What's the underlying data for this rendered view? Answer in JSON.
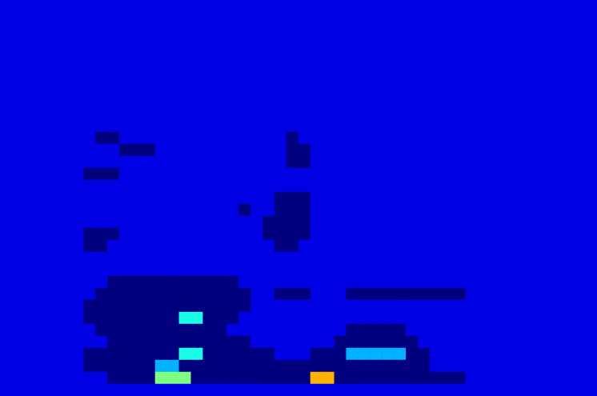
{
  "chart_data": {
    "type": "heatmap",
    "tick_labels": false,
    "color_range": [
      0,
      10
    ],
    "cells": [
      [
        1,
        1,
        1,
        1,
        1,
        1,
        1,
        1,
        1,
        1,
        1,
        1,
        1,
        1,
        1,
        1,
        1,
        1,
        1,
        1,
        1,
        1,
        1,
        1,
        1,
        1,
        1,
        1,
        1,
        1,
        1,
        1,
        1,
        1,
        1,
        1,
        1,
        1,
        1,
        1,
        1,
        1,
        1,
        1,
        1,
        1,
        1,
        1,
        1,
        1
      ],
      [
        1,
        1,
        1,
        1,
        1,
        1,
        1,
        1,
        1,
        1,
        1,
        1,
        1,
        1,
        1,
        1,
        1,
        1,
        1,
        1,
        1,
        1,
        1,
        1,
        1,
        1,
        1,
        1,
        1,
        1,
        1,
        1,
        1,
        1,
        1,
        1,
        1,
        1,
        1,
        1,
        1,
        1,
        1,
        1,
        1,
        1,
        1,
        1,
        1,
        1
      ],
      [
        1,
        1,
        1,
        1,
        1,
        1,
        1,
        1,
        1,
        1,
        1,
        1,
        1,
        1,
        1,
        1,
        1,
        1,
        1,
        1,
        1,
        1,
        1,
        1,
        1,
        1,
        1,
        1,
        1,
        1,
        1,
        1,
        1,
        1,
        1,
        1,
        1,
        1,
        1,
        1,
        1,
        1,
        1,
        1,
        1,
        1,
        1,
        1,
        1,
        1
      ],
      [
        1,
        1,
        1,
        1,
        1,
        1,
        1,
        1,
        1,
        1,
        1,
        1,
        1,
        1,
        1,
        1,
        1,
        1,
        1,
        1,
        1,
        1,
        1,
        1,
        1,
        1,
        1,
        1,
        1,
        1,
        1,
        1,
        1,
        1,
        1,
        1,
        1,
        1,
        1,
        1,
        1,
        1,
        1,
        1,
        1,
        1,
        1,
        1,
        1,
        1
      ],
      [
        1,
        1,
        1,
        1,
        1,
        1,
        1,
        1,
        1,
        1,
        1,
        1,
        1,
        1,
        1,
        1,
        1,
        1,
        1,
        1,
        1,
        1,
        1,
        1,
        1,
        1,
        1,
        1,
        1,
        1,
        1,
        1,
        1,
        1,
        1,
        1,
        1,
        1,
        1,
        1,
        1,
        1,
        1,
        1,
        1,
        1,
        1,
        1,
        1,
        1
      ],
      [
        1,
        1,
        1,
        1,
        1,
        1,
        1,
        1,
        1,
        1,
        1,
        1,
        1,
        1,
        1,
        1,
        1,
        1,
        1,
        1,
        1,
        1,
        1,
        1,
        1,
        1,
        1,
        1,
        1,
        1,
        1,
        1,
        1,
        1,
        1,
        1,
        1,
        1,
        1,
        1,
        1,
        1,
        1,
        1,
        1,
        1,
        1,
        1,
        1,
        1
      ],
      [
        1,
        1,
        1,
        1,
        1,
        1,
        1,
        1,
        1,
        1,
        1,
        1,
        1,
        1,
        1,
        1,
        1,
        1,
        1,
        1,
        1,
        1,
        1,
        1,
        1,
        1,
        1,
        1,
        1,
        1,
        1,
        1,
        1,
        1,
        1,
        1,
        1,
        1,
        1,
        1,
        1,
        1,
        1,
        1,
        1,
        1,
        1,
        1,
        1,
        1
      ],
      [
        1,
        1,
        1,
        1,
        1,
        1,
        1,
        1,
        1,
        1,
        1,
        1,
        1,
        1,
        1,
        1,
        1,
        1,
        1,
        1,
        1,
        1,
        1,
        1,
        1,
        1,
        1,
        1,
        1,
        1,
        1,
        1,
        1,
        1,
        1,
        1,
        1,
        1,
        1,
        1,
        1,
        1,
        1,
        1,
        1,
        1,
        1,
        1,
        1,
        1
      ],
      [
        1,
        1,
        1,
        1,
        1,
        1,
        1,
        1,
        1,
        1,
        1,
        1,
        1,
        1,
        1,
        1,
        1,
        1,
        1,
        1,
        1,
        1,
        1,
        1,
        1,
        1,
        1,
        1,
        1,
        1,
        1,
        1,
        1,
        1,
        1,
        1,
        1,
        1,
        1,
        1,
        1,
        1,
        1,
        1,
        1,
        1,
        1,
        1,
        1,
        1
      ],
      [
        1,
        1,
        1,
        1,
        1,
        1,
        1,
        1,
        1,
        1,
        1,
        1,
        1,
        1,
        1,
        1,
        1,
        1,
        1,
        1,
        1,
        1,
        1,
        1,
        1,
        1,
        1,
        1,
        1,
        1,
        1,
        1,
        1,
        1,
        1,
        1,
        1,
        1,
        1,
        1,
        1,
        1,
        1,
        1,
        1,
        1,
        1,
        1,
        1,
        1
      ],
      [
        1,
        1,
        1,
        1,
        1,
        1,
        1,
        1,
        1,
        1,
        1,
        1,
        1,
        1,
        1,
        1,
        1,
        1,
        1,
        1,
        1,
        1,
        1,
        1,
        1,
        1,
        1,
        1,
        1,
        1,
        1,
        1,
        1,
        1,
        1,
        1,
        1,
        1,
        1,
        1,
        1,
        1,
        1,
        1,
        1,
        1,
        1,
        1,
        1,
        1
      ],
      [
        1,
        1,
        1,
        1,
        1,
        1,
        1,
        1,
        0,
        0,
        1,
        1,
        1,
        1,
        1,
        1,
        1,
        1,
        1,
        1,
        1,
        1,
        1,
        1,
        0,
        1,
        1,
        1,
        1,
        1,
        1,
        1,
        1,
        1,
        1,
        1,
        1,
        1,
        1,
        1,
        1,
        1,
        1,
        1,
        1,
        1,
        1,
        1,
        1,
        1
      ],
      [
        1,
        1,
        1,
        1,
        1,
        1,
        1,
        1,
        1,
        1,
        0,
        0,
        0,
        1,
        1,
        1,
        1,
        1,
        1,
        1,
        1,
        1,
        1,
        1,
        0,
        0,
        1,
        1,
        1,
        1,
        1,
        1,
        1,
        1,
        1,
        1,
        1,
        1,
        1,
        1,
        1,
        1,
        1,
        1,
        1,
        1,
        1,
        1,
        1,
        1
      ],
      [
        1,
        1,
        1,
        1,
        1,
        1,
        1,
        1,
        1,
        1,
        1,
        1,
        1,
        1,
        1,
        1,
        1,
        1,
        1,
        1,
        1,
        1,
        1,
        1,
        0,
        0,
        1,
        1,
        1,
        1,
        1,
        1,
        1,
        1,
        1,
        1,
        1,
        1,
        1,
        1,
        1,
        1,
        1,
        1,
        1,
        1,
        1,
        1,
        1,
        1
      ],
      [
        1,
        1,
        1,
        1,
        1,
        1,
        1,
        0,
        0,
        0,
        1,
        1,
        1,
        1,
        1,
        1,
        1,
        1,
        1,
        1,
        1,
        1,
        1,
        1,
        1,
        1,
        1,
        1,
        1,
        1,
        1,
        1,
        1,
        1,
        1,
        1,
        1,
        1,
        1,
        1,
        1,
        1,
        1,
        1,
        1,
        1,
        1,
        1,
        1,
        1
      ],
      [
        1,
        1,
        1,
        1,
        1,
        1,
        1,
        1,
        1,
        1,
        1,
        1,
        1,
        1,
        1,
        1,
        1,
        1,
        1,
        1,
        1,
        1,
        1,
        1,
        1,
        1,
        1,
        1,
        1,
        1,
        1,
        1,
        1,
        1,
        1,
        1,
        1,
        1,
        1,
        1,
        1,
        1,
        1,
        1,
        1,
        1,
        1,
        1,
        1,
        1
      ],
      [
        1,
        1,
        1,
        1,
        1,
        1,
        1,
        1,
        1,
        1,
        1,
        1,
        1,
        1,
        1,
        1,
        1,
        1,
        1,
        1,
        1,
        1,
        1,
        0,
        0,
        0,
        1,
        1,
        1,
        1,
        1,
        1,
        1,
        1,
        1,
        1,
        1,
        1,
        1,
        1,
        1,
        1,
        1,
        1,
        1,
        1,
        1,
        1,
        1,
        1
      ],
      [
        1,
        1,
        1,
        1,
        1,
        1,
        1,
        1,
        1,
        1,
        1,
        1,
        1,
        1,
        1,
        1,
        1,
        1,
        1,
        1,
        0,
        1,
        1,
        0,
        0,
        0,
        1,
        1,
        1,
        1,
        1,
        1,
        1,
        1,
        1,
        1,
        1,
        1,
        1,
        1,
        1,
        1,
        1,
        1,
        1,
        1,
        1,
        1,
        1,
        1
      ],
      [
        1,
        1,
        1,
        1,
        1,
        1,
        1,
        1,
        1,
        1,
        1,
        1,
        1,
        1,
        1,
        1,
        1,
        1,
        1,
        1,
        1,
        1,
        0,
        0,
        0,
        0,
        1,
        1,
        1,
        1,
        1,
        1,
        1,
        1,
        1,
        1,
        1,
        1,
        1,
        1,
        1,
        1,
        1,
        1,
        1,
        1,
        1,
        1,
        1,
        1
      ],
      [
        1,
        1,
        1,
        1,
        1,
        1,
        1,
        0,
        0,
        0,
        1,
        1,
        1,
        1,
        1,
        1,
        1,
        1,
        1,
        1,
        1,
        1,
        0,
        0,
        0,
        0,
        1,
        1,
        1,
        1,
        1,
        1,
        1,
        1,
        1,
        1,
        1,
        1,
        1,
        1,
        1,
        1,
        1,
        1,
        1,
        1,
        1,
        1,
        1,
        1
      ],
      [
        1,
        1,
        1,
        1,
        1,
        1,
        1,
        0,
        0,
        1,
        1,
        1,
        1,
        1,
        1,
        1,
        1,
        1,
        1,
        1,
        1,
        1,
        1,
        0,
        0,
        1,
        1,
        1,
        1,
        1,
        1,
        1,
        1,
        1,
        1,
        1,
        1,
        1,
        1,
        1,
        1,
        1,
        1,
        1,
        1,
        1,
        1,
        1,
        1,
        1
      ],
      [
        1,
        1,
        1,
        1,
        1,
        1,
        1,
        1,
        1,
        1,
        1,
        1,
        1,
        1,
        1,
        1,
        1,
        1,
        1,
        1,
        1,
        1,
        1,
        1,
        1,
        1,
        1,
        1,
        1,
        1,
        1,
        1,
        1,
        1,
        1,
        1,
        1,
        1,
        1,
        1,
        1,
        1,
        1,
        1,
        1,
        1,
        1,
        1,
        1,
        1
      ],
      [
        1,
        1,
        1,
        1,
        1,
        1,
        1,
        1,
        1,
        1,
        1,
        1,
        1,
        1,
        1,
        1,
        1,
        1,
        1,
        1,
        1,
        1,
        1,
        1,
        1,
        1,
        1,
        1,
        1,
        1,
        1,
        1,
        1,
        1,
        1,
        1,
        1,
        1,
        1,
        1,
        1,
        1,
        1,
        1,
        1,
        1,
        1,
        1,
        1,
        1
      ],
      [
        1,
        1,
        1,
        1,
        1,
        1,
        1,
        1,
        1,
        0,
        0,
        0,
        0,
        0,
        0,
        0,
        0,
        0,
        0,
        0,
        1,
        1,
        1,
        1,
        1,
        1,
        1,
        1,
        1,
        1,
        1,
        1,
        1,
        1,
        1,
        1,
        1,
        1,
        1,
        1,
        1,
        1,
        1,
        1,
        1,
        1,
        1,
        1,
        1,
        1
      ],
      [
        1,
        1,
        1,
        1,
        1,
        1,
        1,
        1,
        0,
        0,
        0,
        0,
        0,
        0,
        0,
        0,
        0,
        0,
        0,
        0,
        0,
        1,
        1,
        0,
        0,
        0,
        1,
        1,
        1,
        0,
        0,
        0,
        0,
        0,
        0,
        0,
        0,
        0,
        0,
        1,
        1,
        1,
        1,
        1,
        1,
        1,
        1,
        1,
        1,
        1
      ],
      [
        1,
        1,
        1,
        1,
        1,
        1,
        1,
        0,
        0,
        0,
        0,
        0,
        0,
        0,
        0,
        0,
        0,
        0,
        0,
        0,
        0,
        1,
        1,
        1,
        1,
        1,
        1,
        1,
        1,
        1,
        1,
        1,
        1,
        1,
        1,
        1,
        1,
        1,
        1,
        1,
        1,
        1,
        1,
        1,
        1,
        1,
        1,
        1,
        1,
        1
      ],
      [
        1,
        1,
        1,
        1,
        1,
        1,
        1,
        0,
        0,
        0,
        0,
        0,
        0,
        0,
        0,
        4,
        4,
        0,
        0,
        0,
        1,
        1,
        1,
        1,
        1,
        1,
        1,
        1,
        1,
        1,
        1,
        1,
        1,
        1,
        1,
        1,
        1,
        1,
        1,
        1,
        1,
        1,
        1,
        1,
        1,
        1,
        1,
        1,
        1,
        1
      ],
      [
        1,
        1,
        1,
        1,
        1,
        1,
        1,
        1,
        0,
        0,
        0,
        0,
        0,
        0,
        0,
        0,
        0,
        0,
        0,
        1,
        1,
        1,
        1,
        1,
        1,
        1,
        1,
        1,
        1,
        0,
        0,
        0,
        0,
        0,
        1,
        1,
        1,
        1,
        1,
        1,
        1,
        1,
        1,
        1,
        1,
        1,
        1,
        1,
        1,
        1
      ],
      [
        1,
        1,
        1,
        1,
        1,
        1,
        1,
        1,
        1,
        0,
        0,
        0,
        0,
        0,
        0,
        0,
        0,
        0,
        0,
        0,
        0,
        1,
        1,
        1,
        1,
        1,
        1,
        1,
        0,
        0,
        0,
        0,
        0,
        0,
        0,
        1,
        1,
        1,
        1,
        1,
        1,
        1,
        1,
        1,
        1,
        1,
        1,
        1,
        1,
        1
      ],
      [
        1,
        1,
        1,
        1,
        1,
        1,
        1,
        0,
        0,
        0,
        0,
        0,
        0,
        0,
        0,
        4,
        4,
        0,
        0,
        0,
        0,
        0,
        0,
        1,
        1,
        1,
        0,
        0,
        0,
        3,
        3,
        3,
        3,
        3,
        0,
        0,
        1,
        1,
        1,
        1,
        1,
        1,
        1,
        1,
        1,
        1,
        1,
        1,
        1,
        1
      ],
      [
        1,
        1,
        1,
        1,
        1,
        1,
        1,
        0,
        0,
        0,
        0,
        0,
        0,
        3,
        3,
        0,
        0,
        0,
        0,
        0,
        0,
        0,
        0,
        0,
        0,
        0,
        0,
        0,
        0,
        0,
        0,
        0,
        0,
        0,
        0,
        0,
        1,
        1,
        1,
        1,
        1,
        1,
        1,
        1,
        1,
        1,
        1,
        1,
        1,
        1
      ],
      [
        1,
        1,
        1,
        1,
        1,
        1,
        1,
        1,
        1,
        0,
        0,
        0,
        0,
        5,
        5,
        5,
        0,
        0,
        0,
        0,
        0,
        0,
        0,
        0,
        0,
        0,
        7,
        7,
        0,
        0,
        0,
        0,
        0,
        0,
        0,
        0,
        0,
        0,
        0,
        1,
        1,
        1,
        1,
        1,
        1,
        1,
        1,
        1,
        1,
        1
      ],
      [
        1,
        1,
        1,
        1,
        1,
        1,
        1,
        1,
        1,
        1,
        1,
        1,
        1,
        1,
        1,
        1,
        1,
        1,
        1,
        1,
        1,
        1,
        1,
        1,
        1,
        1,
        1,
        1,
        1,
        1,
        1,
        1,
        1,
        1,
        1,
        1,
        1,
        1,
        1,
        1,
        1,
        1,
        1,
        1,
        1,
        1,
        1,
        1,
        1,
        1
      ]
    ]
  }
}
